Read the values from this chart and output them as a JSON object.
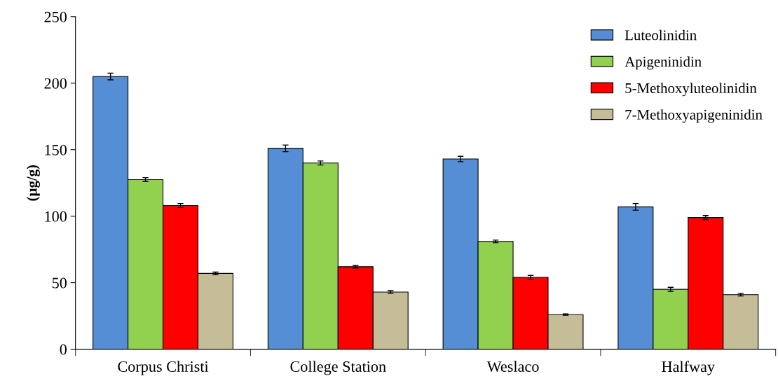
{
  "chart_data": {
    "type": "bar",
    "ylabel": "(µg/g)",
    "categories": [
      "Corpus Christi",
      "College Station",
      "Weslaco",
      "Halfway"
    ],
    "series": [
      {
        "name": "Luteolinidin",
        "color": "#558ed5",
        "values": [
          205,
          151,
          143,
          107
        ],
        "errors": [
          2.5,
          2.5,
          2,
          2.5
        ]
      },
      {
        "name": "Apigeninidin",
        "color": "#92d050",
        "values": [
          127.5,
          140,
          81,
          45
        ],
        "errors": [
          1.5,
          1.5,
          1,
          1.5
        ]
      },
      {
        "name": "5-Methoxyluteolinidin",
        "color": "#ff0000",
        "values": [
          108,
          62,
          54,
          99
        ],
        "errors": [
          1.5,
          1,
          1.5,
          1.5
        ]
      },
      {
        "name": "7-Methoxyapigeninidin",
        "color": "#c4bd97",
        "values": [
          57,
          43,
          26,
          41
        ],
        "errors": [
          1,
          1,
          0.5,
          1
        ]
      }
    ],
    "ylim": [
      0,
      250
    ],
    "yticks": [
      0,
      50,
      100,
      150,
      200,
      250
    ],
    "grid": false,
    "legend": "top right"
  }
}
